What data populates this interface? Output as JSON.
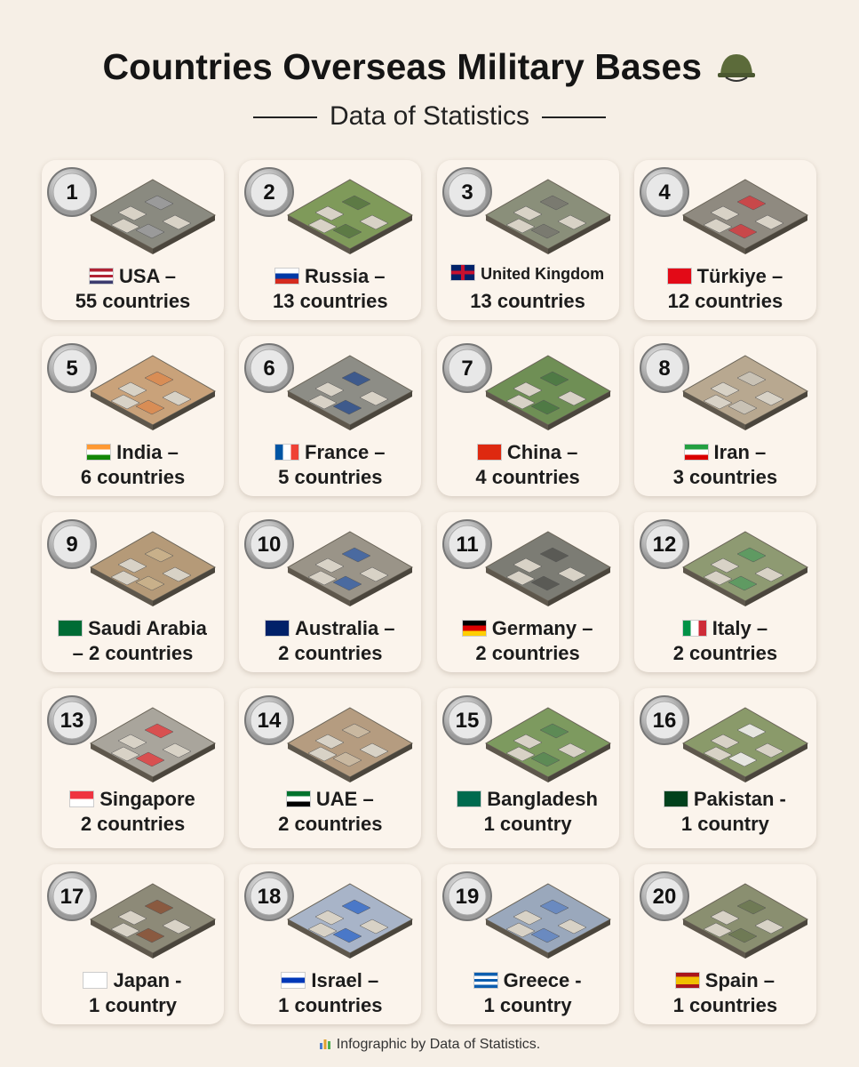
{
  "header": {
    "title": "Countries Overseas Military Bases",
    "subtitle": "Data of Statistics"
  },
  "cards": [
    {
      "rank": "1",
      "line1": "USA –",
      "line2": "55 countries"
    },
    {
      "rank": "2",
      "line1": "Russia –",
      "line2": "13 countries"
    },
    {
      "rank": "3",
      "line1": "United Kingdom",
      "line2": "13 countries"
    },
    {
      "rank": "4",
      "line1": "Türkiye –",
      "line2": "12 countries"
    },
    {
      "rank": "5",
      "line1": "India –",
      "line2": "6 countries"
    },
    {
      "rank": "6",
      "line1": "France –",
      "line2": "5 countries"
    },
    {
      "rank": "7",
      "line1": "China –",
      "line2": "4 countries"
    },
    {
      "rank": "8",
      "line1": "Iran –",
      "line2": "3 countries"
    },
    {
      "rank": "9",
      "line1": "Saudi Arabia",
      "line2": "– 2 countries"
    },
    {
      "rank": "10",
      "line1": "Australia –",
      "line2": "2 countries"
    },
    {
      "rank": "11",
      "line1": "Germany –",
      "line2": "2 countries"
    },
    {
      "rank": "12",
      "line1": "Italy –",
      "line2": "2 countries"
    },
    {
      "rank": "13",
      "line1": "Singapore",
      "line2": "2 countries"
    },
    {
      "rank": "14",
      "line1": "UAE –",
      "line2": "2 countries"
    },
    {
      "rank": "15",
      "line1": "Bangladesh",
      "line2": "1 country"
    },
    {
      "rank": "16",
      "line1": "Pakistan -",
      "line2": "1 country"
    },
    {
      "rank": "17",
      "line1": "Japan -",
      "line2": "1 country"
    },
    {
      "rank": "18",
      "line1": "Israel –",
      "line2": "1 countries"
    },
    {
      "rank": "19",
      "line1": "Greece -",
      "line2": "1 country"
    },
    {
      "rank": "20",
      "line1": "Spain –",
      "line2": "1 countries"
    }
  ],
  "footer": "Infographic by Data of Statistics."
}
